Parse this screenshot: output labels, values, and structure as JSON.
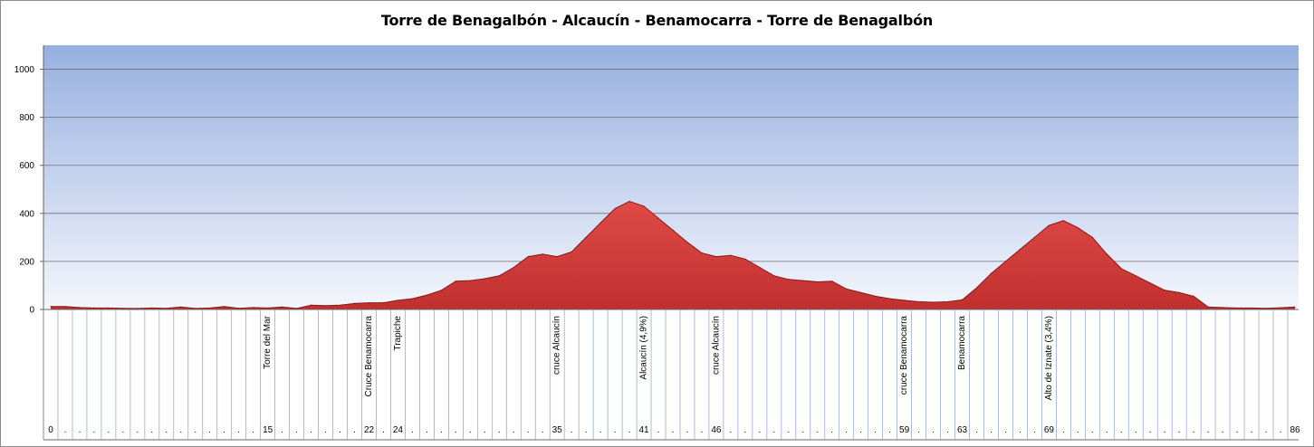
{
  "chart_data": {
    "type": "area",
    "title": "Torre de Benagalbón - Alcaucín - Benamocarra - Torre de Benagalbón",
    "xlabel": "",
    "ylabel": "",
    "ylim": [
      0,
      1100
    ],
    "yticks": [
      0,
      200,
      400,
      600,
      800,
      1000
    ],
    "grid": true,
    "legend": "none",
    "colors": {
      "fill": "#c0302f",
      "fill_light": "#e04a47",
      "line": "#8a1717",
      "bg_top": "#97b0e0",
      "bg_bottom": "#f4f6fc",
      "grid": "#6f6f6f"
    },
    "x": [
      0,
      1,
      2,
      3,
      4,
      5,
      6,
      7,
      8,
      9,
      10,
      11,
      12,
      13,
      14,
      15,
      16,
      17,
      18,
      19,
      20,
      21,
      22,
      23,
      24,
      25,
      26,
      27,
      28,
      29,
      30,
      31,
      32,
      33,
      34,
      35,
      36,
      37,
      38,
      39,
      40,
      41,
      42,
      43,
      44,
      45,
      46,
      47,
      48,
      49,
      50,
      51,
      52,
      53,
      54,
      55,
      56,
      57,
      58,
      59,
      60,
      61,
      62,
      63,
      64,
      65,
      66,
      67,
      68,
      69,
      70,
      71,
      72,
      73,
      74,
      75,
      76,
      77,
      78,
      79,
      80,
      81,
      82,
      83,
      84,
      85,
      86
    ],
    "values": [
      12,
      12,
      8,
      6,
      6,
      5,
      4,
      6,
      5,
      10,
      4,
      6,
      12,
      5,
      8,
      6,
      10,
      4,
      18,
      16,
      18,
      25,
      28,
      28,
      38,
      45,
      60,
      80,
      118,
      120,
      128,
      140,
      175,
      220,
      230,
      220,
      240,
      300,
      360,
      420,
      450,
      430,
      380,
      330,
      280,
      235,
      220,
      225,
      210,
      175,
      140,
      125,
      120,
      115,
      118,
      85,
      70,
      55,
      45,
      38,
      32,
      30,
      32,
      40,
      90,
      150,
      200,
      250,
      300,
      350,
      370,
      340,
      300,
      230,
      170,
      140,
      110,
      80,
      70,
      55,
      10,
      8,
      6,
      6,
      5,
      7,
      10
    ],
    "categories_shown": [
      {
        "km": 15,
        "label": "Torre del Mar"
      },
      {
        "km": 22,
        "label": "Cruce Benamocarra"
      },
      {
        "km": 24,
        "label": "Trapiche"
      },
      {
        "km": 35,
        "label": "cruce Alcaucín"
      },
      {
        "km": 41,
        "label": "Alcaucín (4,9%)"
      },
      {
        "km": 46,
        "label": "cruce Alcaucín"
      },
      {
        "km": 59,
        "label": "cruce Benamocarra"
      },
      {
        "km": 63,
        "label": "Benamocarra"
      },
      {
        "km": 69,
        "label": "Alto de Iznate (3,4%)"
      }
    ],
    "km_labels_shown": [
      0,
      15,
      22,
      24,
      35,
      41,
      46,
      59,
      63,
      69,
      86
    ]
  }
}
